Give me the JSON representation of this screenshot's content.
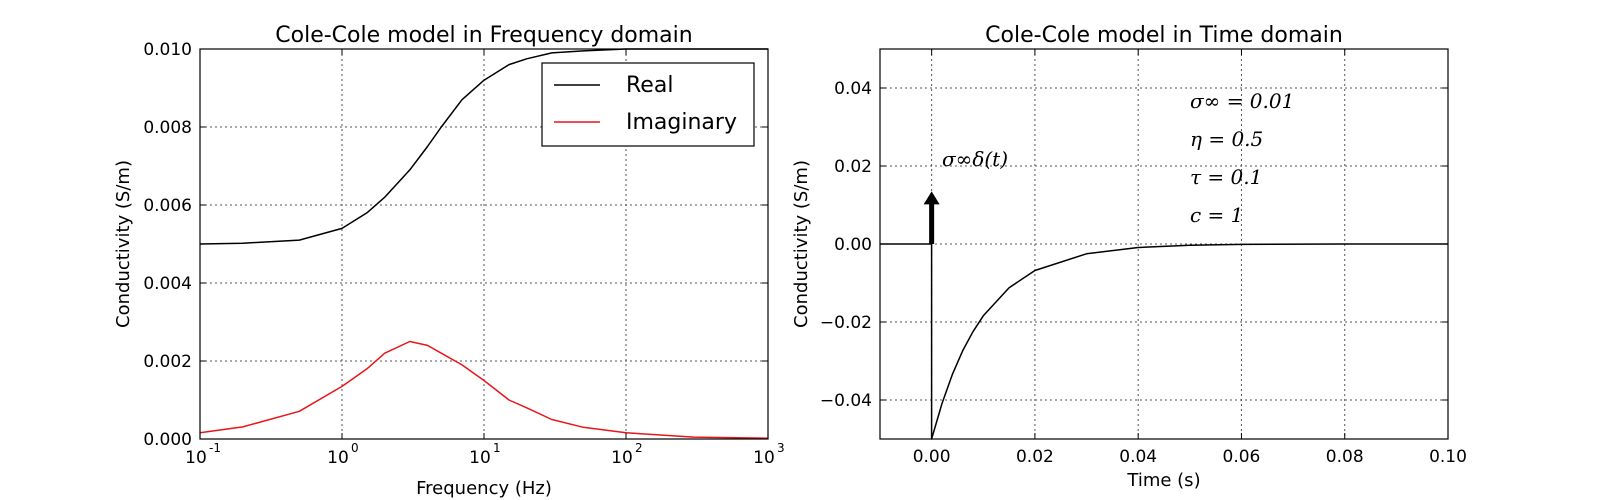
{
  "chart_data": [
    {
      "type": "line",
      "title": "Cole-Cole model in Frequency domain",
      "xlabel": "Frequency (Hz)",
      "ylabel": "Conductivity (S/m)",
      "xscale": "log",
      "xlim": [
        0.1,
        1000
      ],
      "ylim": [
        0.0,
        0.01
      ],
      "xticks": [
        {
          "base": "10",
          "exp": "-1"
        },
        {
          "base": "10",
          "exp": "0"
        },
        {
          "base": "10",
          "exp": "1"
        },
        {
          "base": "10",
          "exp": "2"
        },
        {
          "base": "10",
          "exp": "3"
        }
      ],
      "yticks": [
        "0.000",
        "0.002",
        "0.004",
        "0.006",
        "0.008",
        "0.010"
      ],
      "grid": true,
      "legend": "top-right",
      "series": [
        {
          "name": "Real",
          "color": "#000000",
          "x": [
            0.1,
            0.2,
            0.5,
            1,
            1.5,
            2,
            3,
            4,
            5,
            7,
            10,
            15,
            20,
            30,
            50,
            100,
            1000
          ],
          "y": [
            0.005,
            0.00502,
            0.0051,
            0.0054,
            0.0058,
            0.0062,
            0.0069,
            0.0075,
            0.008,
            0.0087,
            0.0092,
            0.0096,
            0.00975,
            0.0099,
            0.00995,
            0.01,
            0.01
          ]
        },
        {
          "name": "Imaginary",
          "color": "#e8151b",
          "x": [
            0.1,
            0.2,
            0.5,
            1,
            1.5,
            2,
            3,
            4,
            5,
            7,
            10,
            15,
            20,
            30,
            50,
            100,
            300,
            1000
          ],
          "y": [
            0.00016,
            0.00031,
            0.00071,
            0.00135,
            0.0018,
            0.0022,
            0.0025,
            0.0024,
            0.0022,
            0.0019,
            0.0015,
            0.001,
            0.0008,
            0.0005,
            0.0003,
            0.00016,
            5e-05,
            2e-05
          ]
        }
      ]
    },
    {
      "type": "line",
      "title": "Cole-Cole model in Time domain",
      "xlabel": "Time (s)",
      "ylabel": "Conductivity (S/m)",
      "xlim": [
        -0.01,
        0.1
      ],
      "ylim": [
        -0.05,
        0.05
      ],
      "xticks": [
        "0.00",
        "0.02",
        "0.04",
        "0.06",
        "0.08",
        "0.10"
      ],
      "xtick_values": [
        0.0,
        0.02,
        0.04,
        0.06,
        0.08,
        0.1
      ],
      "yticks": [
        "−0.04",
        "−0.02",
        "0.00",
        "0.02",
        "0.04"
      ],
      "ytick_values": [
        -0.04,
        -0.02,
        0.0,
        0.02,
        0.04
      ],
      "grid": true,
      "series": [
        {
          "color": "#000000",
          "x": [
            -0.01,
            0.0,
            0.0,
            0.002,
            0.004,
            0.006,
            0.008,
            0.01,
            0.015,
            0.02,
            0.03,
            0.04,
            0.05,
            0.06,
            0.08,
            0.1
          ],
          "y": [
            0.0,
            0.0,
            -0.05,
            -0.0409,
            -0.0335,
            -0.0274,
            -0.0225,
            -0.0184,
            -0.0112,
            -0.0068,
            -0.0025,
            -0.0009,
            -0.0003,
            -0.0001,
            0.0,
            0.0
          ]
        }
      ],
      "impulse": {
        "x": 0.0,
        "y_from": 0.0,
        "y_to": 0.0135
      },
      "annotations": {
        "impulse_label": "σ∞δ(t)",
        "params": [
          "σ∞ = 0.01",
          "η = 0.5",
          "τ = 0.1",
          "c = 1"
        ]
      }
    }
  ]
}
